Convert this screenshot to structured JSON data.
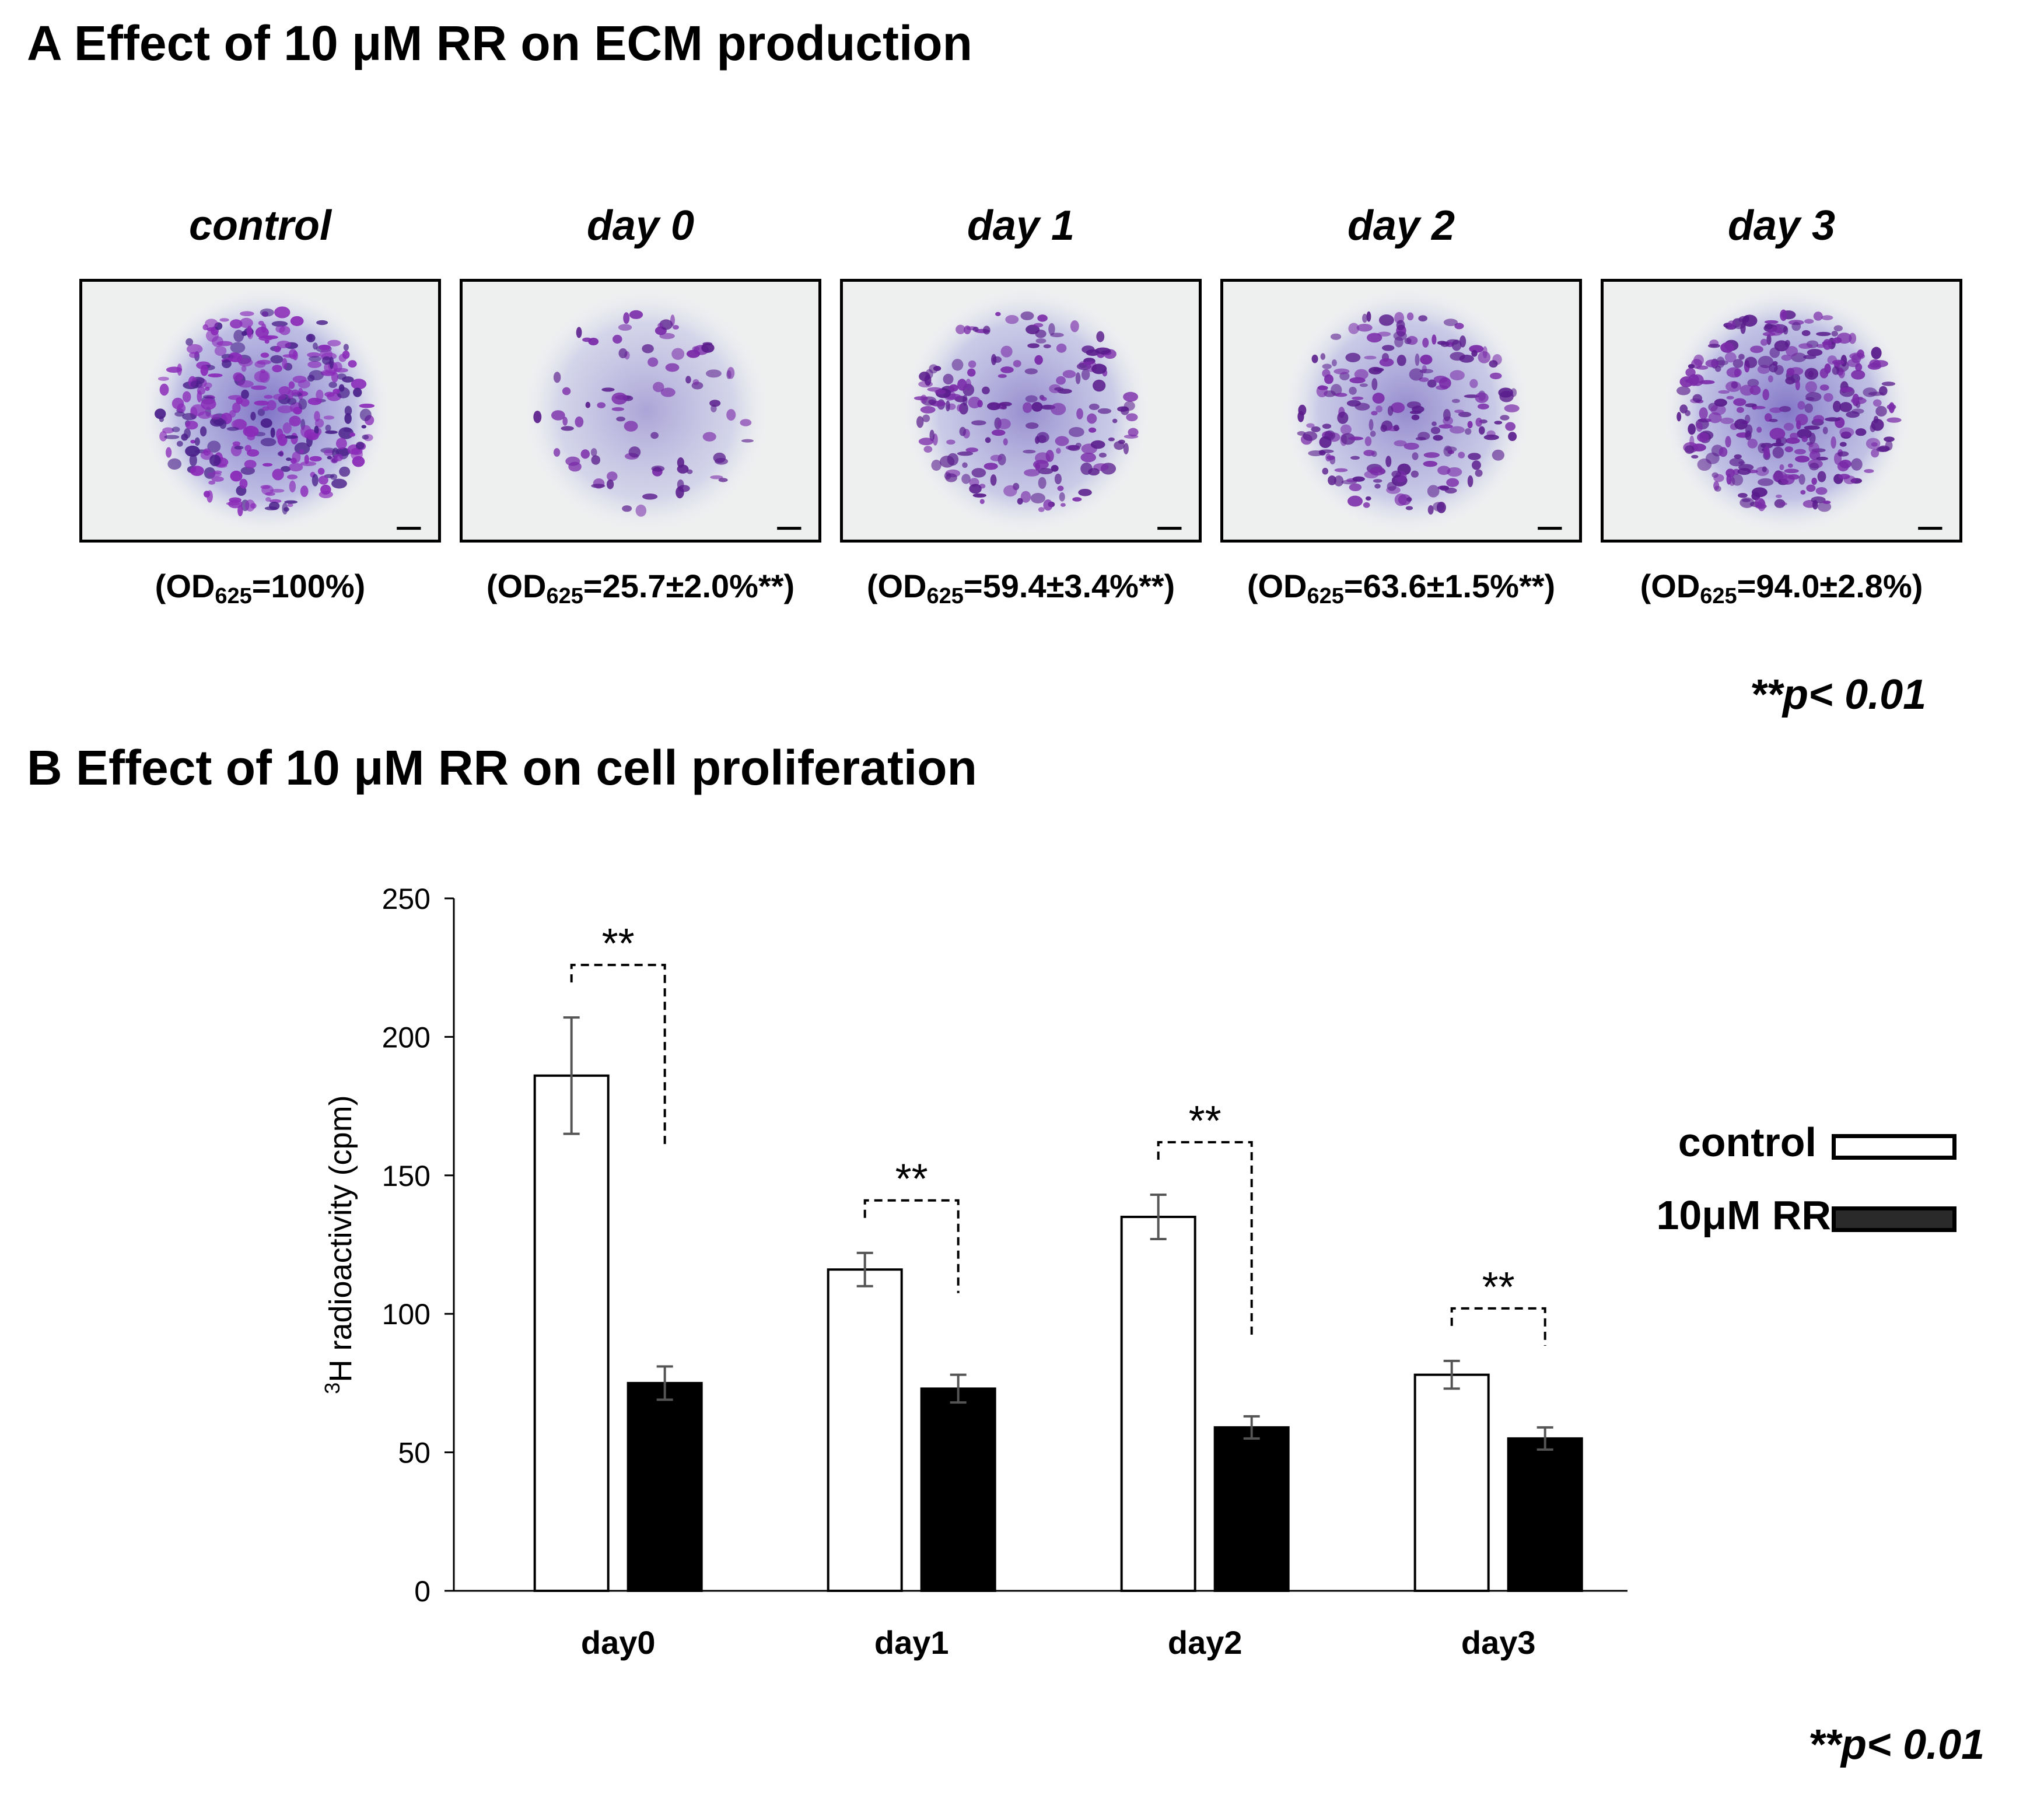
{
  "panel_a": {
    "title": "A Effect of 10 μM RR on ECM production",
    "panels": [
      {
        "label": "control",
        "od_prefix": "(OD",
        "od_sub": "625",
        "od_value": "=100%)",
        "stain": 1.0
      },
      {
        "label": "day 0",
        "od_prefix": "(OD",
        "od_sub": "625",
        "od_value": "=25.7±2.0%**)",
        "stain": 0.257
      },
      {
        "label": "day 1",
        "od_prefix": "(OD",
        "od_sub": "625",
        "od_value": "=59.4±3.4%**)",
        "stain": 0.594
      },
      {
        "label": "day 2",
        "od_prefix": "(OD",
        "od_sub": "625",
        "od_value": "=63.6±1.5%**)",
        "stain": 0.636
      },
      {
        "label": "day 3",
        "od_prefix": "(OD",
        "od_sub": "625",
        "od_value": "=94.0±2.8%)",
        "stain": 0.94
      }
    ],
    "pvalue_note": "**p< 0.01"
  },
  "panel_b": {
    "title": "B Effect of 10 μM RR on cell proliferation",
    "pvalue_note": "**p< 0.01",
    "legend": [
      {
        "label": "control",
        "fill": "#ffffff"
      },
      {
        "label": "10μM RR",
        "fill": "#2a2a2a"
      }
    ]
  },
  "chart_data": {
    "type": "bar",
    "categories": [
      "day0",
      "day1",
      "day2",
      "day3"
    ],
    "series": [
      {
        "name": "control",
        "values": [
          186,
          116,
          135,
          78
        ],
        "errors": [
          21,
          6,
          8,
          5
        ],
        "color": "#ffffff"
      },
      {
        "name": "10μM RR",
        "values": [
          75,
          73,
          59,
          55
        ],
        "errors": [
          6,
          5,
          4,
          4
        ],
        "color": "#000000"
      }
    ],
    "ylabel_sup": "3",
    "ylabel": "H radioactivity (cpm)",
    "ylim": [
      0,
      250
    ],
    "yticks": [
      0,
      50,
      100,
      150,
      200,
      250
    ],
    "significance": [
      {
        "category": "day0",
        "label": "**"
      },
      {
        "category": "day1",
        "label": "**"
      },
      {
        "category": "day2",
        "label": "**"
      },
      {
        "category": "day3",
        "label": "**"
      }
    ],
    "grid": false,
    "legend_position": "right"
  }
}
